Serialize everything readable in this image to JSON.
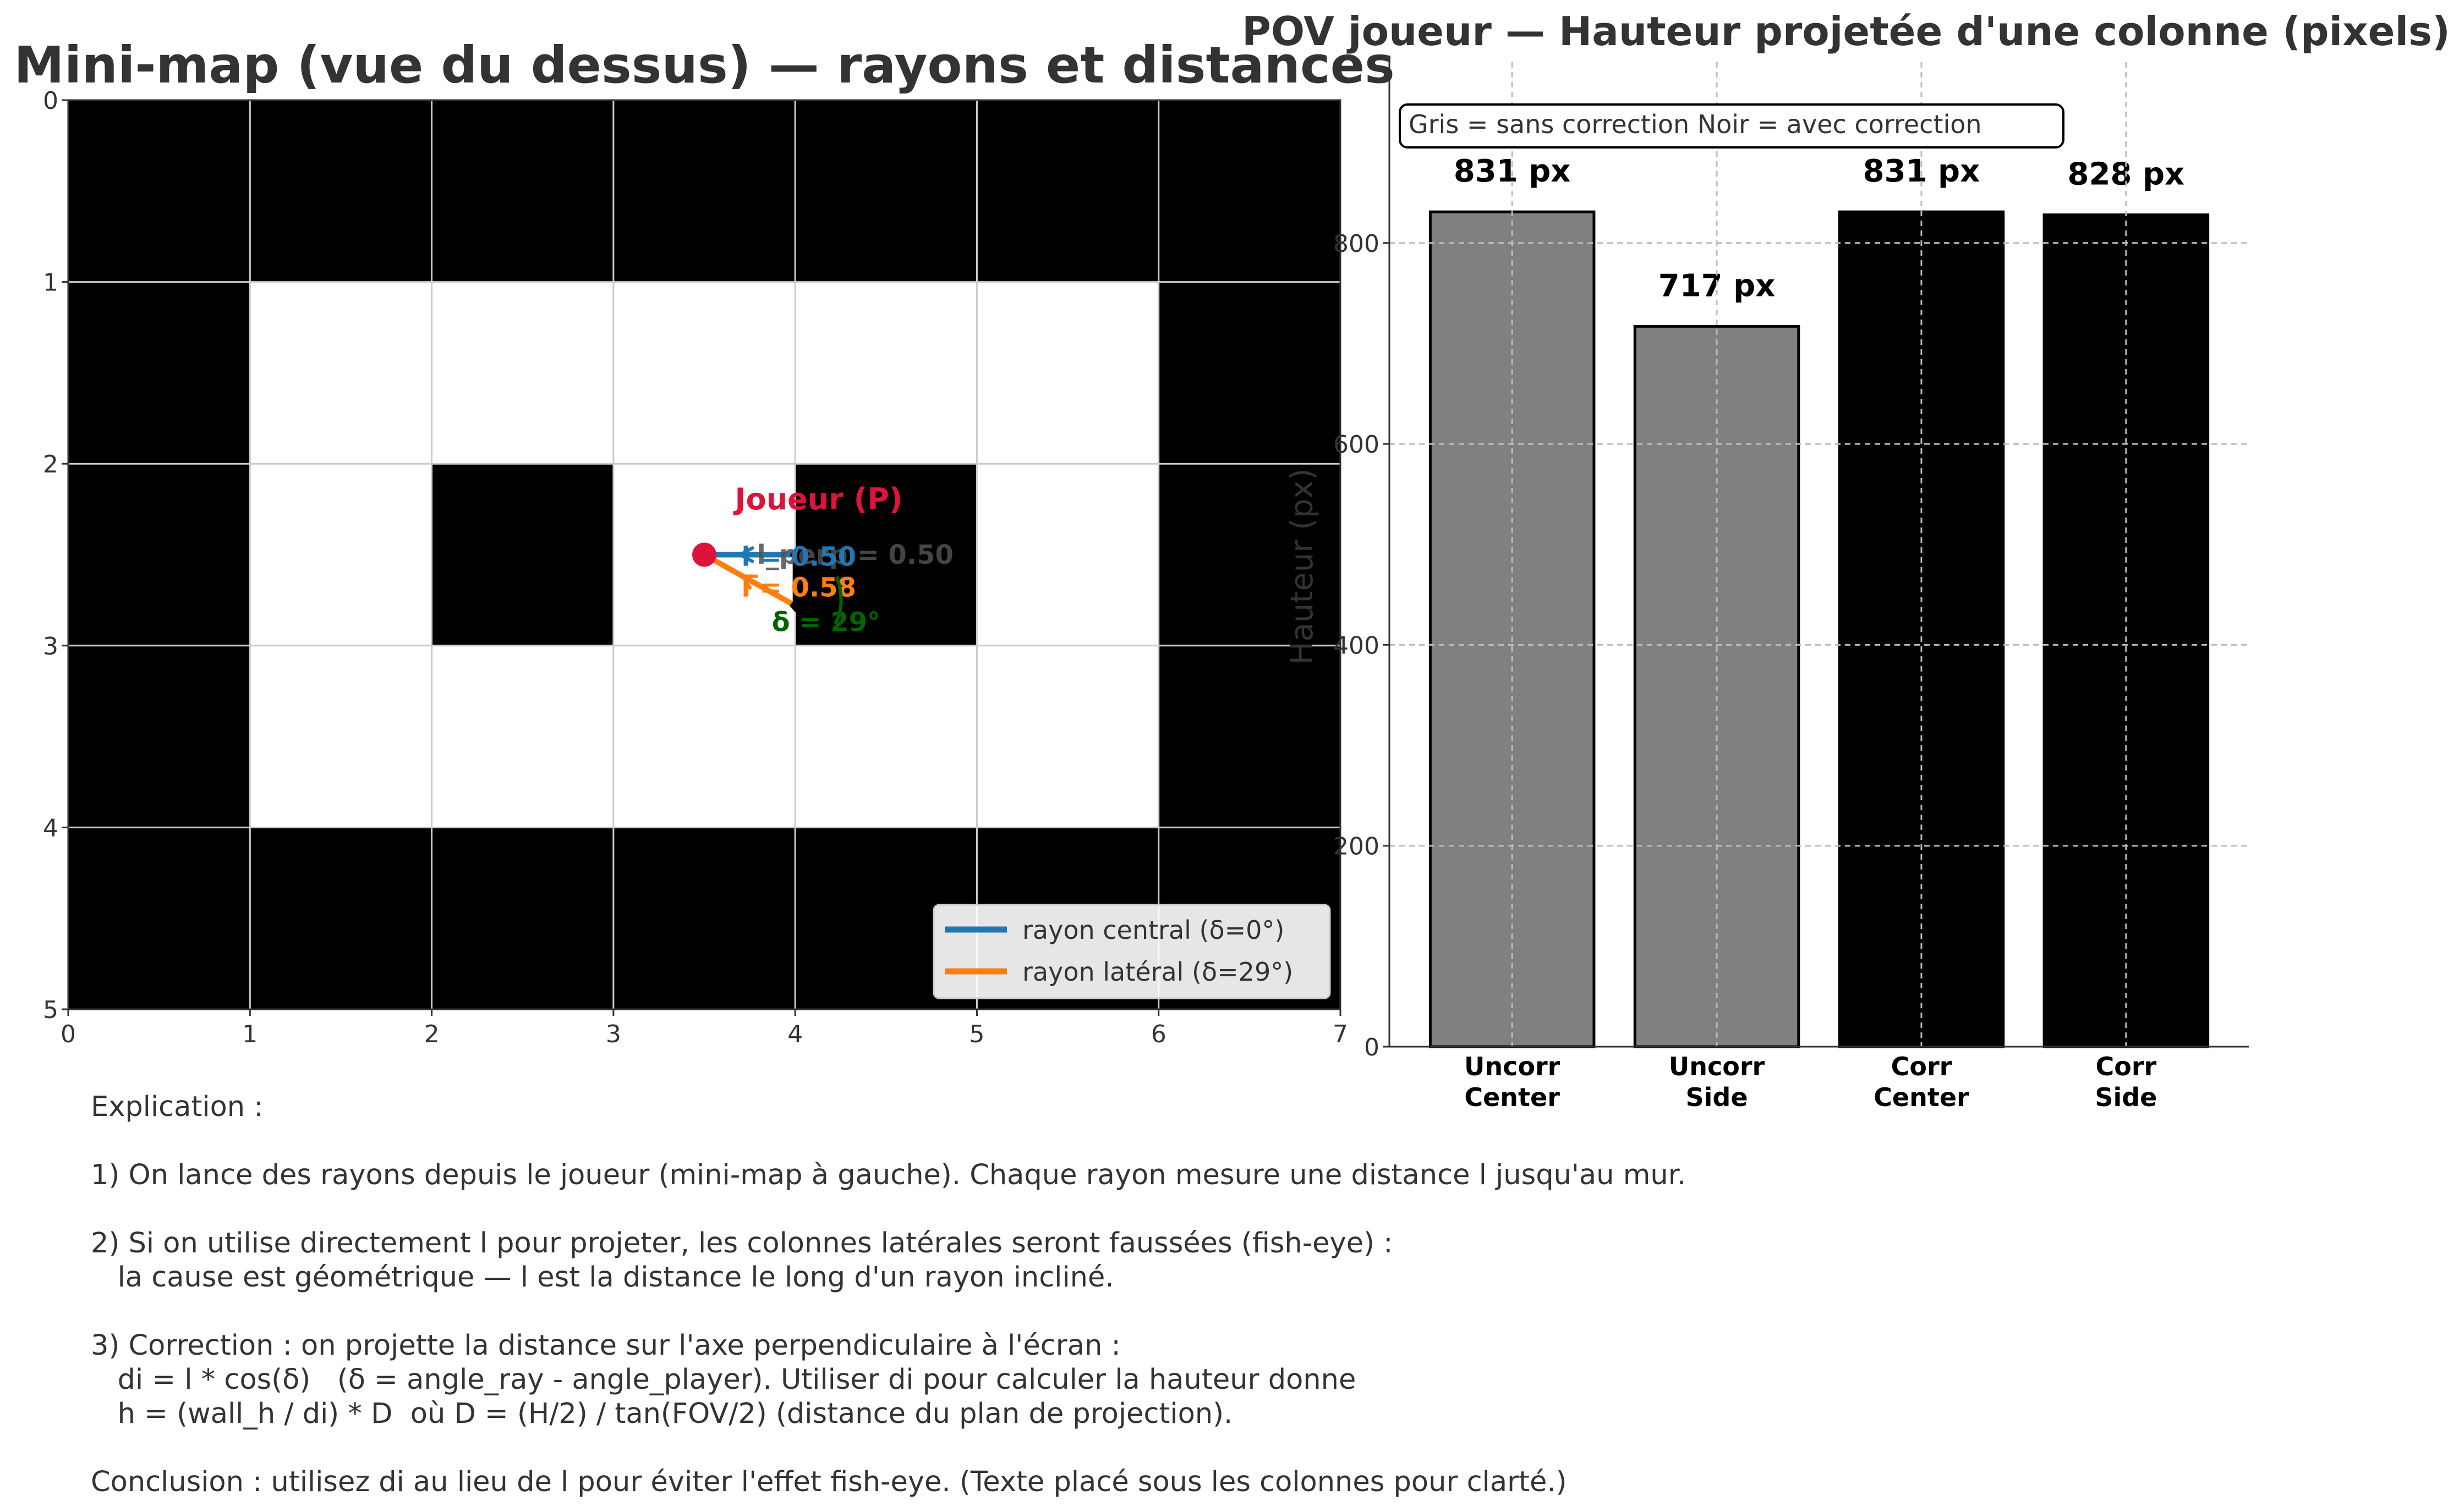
{
  "chart_data": [
    {
      "type": "heatmap",
      "title": "Mini-map (vue du dessus) — rayons et distances",
      "xlim": [
        0,
        7
      ],
      "ylim": [
        5,
        0
      ],
      "x_ticks": [
        "0",
        "1",
        "2",
        "3",
        "4",
        "5",
        "6",
        "7"
      ],
      "y_ticks": [
        "0",
        "1",
        "2",
        "3",
        "4",
        "5"
      ],
      "grid": [
        [
          1,
          1,
          1,
          1,
          1,
          1,
          1
        ],
        [
          1,
          0,
          0,
          0,
          0,
          0,
          1
        ],
        [
          1,
          0,
          1,
          0,
          1,
          0,
          1
        ],
        [
          1,
          0,
          0,
          0,
          0,
          0,
          1
        ],
        [
          1,
          1,
          1,
          1,
          1,
          1,
          1
        ]
      ],
      "player": {
        "x": 3.5,
        "y": 2.5,
        "label": "Joueur (P)"
      },
      "rays": [
        {
          "name": "rayon central (δ=0°)",
          "color": "#1f77b4",
          "end": [
            4.0,
            2.5
          ],
          "label": "l = 0.50",
          "overlap_label": "l_perp = 0.50"
        },
        {
          "name": "rayon latéral (δ=29°)",
          "color": "#ff7f0e",
          "end": [
            4.0,
            2.78
          ],
          "label": "l = 0.58"
        }
      ],
      "perp_path": [
        [
          3.5,
          2.5
        ],
        [
          4.0,
          2.5
        ],
        [
          4.0,
          2.78
        ]
      ],
      "angle_label": "δ = 29°",
      "legend_position": "lower-right"
    },
    {
      "type": "bar",
      "title": "POV joueur — Hauteur projetée d'une colonne (pixels)",
      "ylabel": "Hauteur (px)",
      "ylim": [
        0,
        980
      ],
      "y_ticks": [
        0,
        200,
        400,
        600,
        800
      ],
      "categories": [
        "Uncorr\nCenter",
        "Uncorr\nSide",
        "Corr\nCenter",
        "Corr\nSide"
      ],
      "values": [
        831,
        717,
        831,
        828
      ],
      "bar_labels": [
        "831 px",
        "717 px",
        "831 px",
        "828 px"
      ],
      "colors": [
        "#808080",
        "#808080",
        "#000000",
        "#000000"
      ],
      "legend_text": "Gris = sans correction    Noir = avec correction",
      "grid": true
    }
  ],
  "explanation": [
    "Explication :",
    "",
    "1) On lance des rayons depuis le joueur (mini-map à gauche). Chaque rayon mesure une distance l jusqu'au mur.",
    "",
    "2) Si on utilise directement l pour projeter, les colonnes latérales seront faussées (fish-eye) :",
    "   la cause est géométrique — l est la distance le long d'un rayon incliné.",
    "",
    "3) Correction : on projette la distance sur l'axe perpendiculaire à l'écran :",
    "   di = l * cos(δ)   (δ = angle_ray - angle_player). Utiliser di pour calculer la hauteur donne",
    "   h = (wall_h / di) * D  où D = (H/2) / tan(FOV/2) (distance du plan de projection).",
    "",
    "Conclusion : utilisez di au lieu de l pour éviter l'effet fish-eye. (Texte placé sous les colonnes pour clarté.)"
  ]
}
